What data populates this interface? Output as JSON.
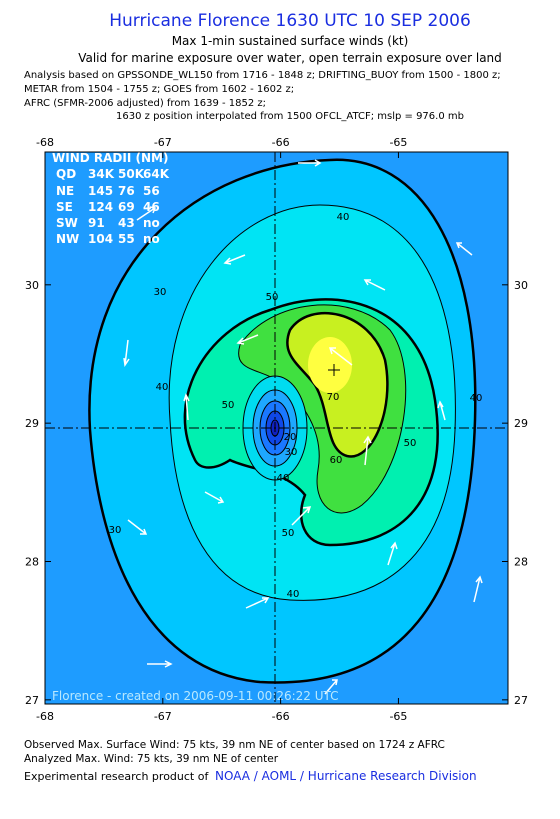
{
  "header": {
    "title": "Hurricane Florence 1630 UTC 10 SEP 2006",
    "subtitle": "Max 1-min sustained surface winds (kt)",
    "validity": "Valid for marine exposure over water, open terrain exposure over land",
    "analysis_lines": [
      "Analysis based on  GPSSONDE_WL150 from 1716 - 1848 z;  DRIFTING_BUOY from 1500 - 1800 z;",
      "METAR from 1504 - 1755 z;  GOES from 1602 - 1602 z;",
      "AFRC (SFMR-2006 adjusted) from 1639 - 1852 z;"
    ],
    "position_note": "1630 z position interpolated from 1500 OFCL_ATCF; mslp = 976.0 mb"
  },
  "map": {
    "xlim": [
      -68,
      -64.07
    ],
    "ylim": [
      26.97,
      30.96
    ],
    "xticks": [
      -68,
      -67,
      -66,
      -65
    ],
    "yticks": [
      27,
      28,
      29,
      30
    ],
    "wind_radii": {
      "title": "WIND RADII (NM)",
      "header": [
        "QD",
        "34K",
        "50K",
        "64K"
      ],
      "rows": [
        [
          "NE",
          "145",
          "76",
          "56"
        ],
        [
          "SE",
          "124",
          "69",
          "46"
        ],
        [
          "SW",
          "91",
          "43",
          "no"
        ],
        [
          "NW",
          "104",
          "55",
          "no"
        ]
      ]
    },
    "contour_labels": [
      40,
      30,
      50,
      40,
      50,
      70,
      50,
      60,
      40,
      50,
      20,
      30,
      40,
      30,
      40
    ],
    "credit": "Florence - created on 2006-09-11 00:26:22 UTC"
  },
  "footer": {
    "observed": "Observed Max. Surface Wind: 75 kts, 39 nm NE of center based on 1724 z AFRC",
    "analyzed": "Analyzed Max. Wind: 75 kts, 39 nm NE of center",
    "product": "Experimental research product of",
    "link": "NOAA / AOML / Hurricane Research Division"
  }
}
